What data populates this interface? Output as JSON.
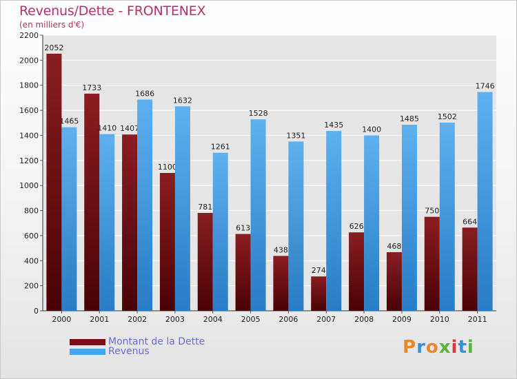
{
  "chart_data": {
    "type": "bar",
    "title": "Revenus/Dette - FRONTENEX",
    "subtitle": "(en milliers d'€)",
    "categories": [
      "2000",
      "2001",
      "2002",
      "2003",
      "2004",
      "2005",
      "2006",
      "2007",
      "2008",
      "2009",
      "2010",
      "2011"
    ],
    "series": [
      {
        "name": "Montant de la Dette",
        "color": "#7a0e14",
        "values": [
          2052,
          1733,
          1407,
          1100,
          781,
          613,
          438,
          274,
          626,
          468,
          750,
          664
        ]
      },
      {
        "name": "Revenus",
        "color": "#4aa3e8",
        "values": [
          1465,
          1410,
          1686,
          1632,
          1261,
          1528,
          1351,
          1435,
          1400,
          1485,
          1502,
          1746
        ]
      }
    ],
    "ylim": [
      0,
      2200
    ],
    "yticks": [
      0,
      200,
      400,
      600,
      800,
      1000,
      1200,
      1400,
      1600,
      1800,
      2000,
      2200
    ],
    "grid": true,
    "legend": "bottom-left"
  },
  "logo": {
    "letters": [
      "P",
      "r",
      "o",
      "x",
      "i",
      "t",
      "i"
    ],
    "colors": [
      "#e8892a",
      "#3a8fd9",
      "#e8892a",
      "#5bb33b",
      "#d9363e",
      "#3a8fd9",
      "#5bb33b"
    ]
  }
}
